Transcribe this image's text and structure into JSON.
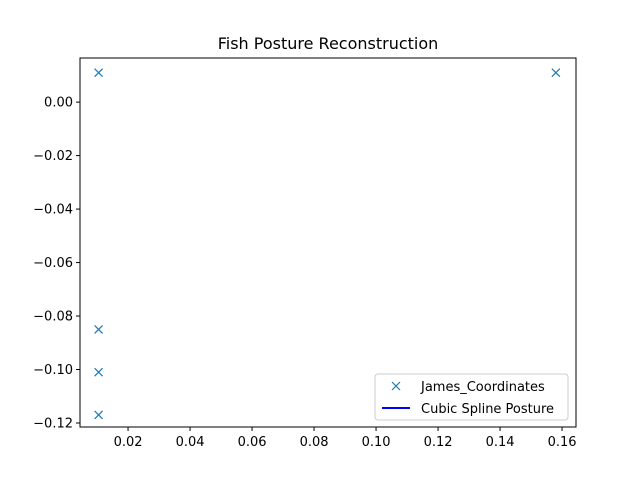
{
  "chart_data": {
    "type": "scatter",
    "title": "Fish Posture Reconstruction",
    "xlabel": "",
    "ylabel": "",
    "xlim": [
      0.0045,
      0.1645
    ],
    "ylim": [
      -0.1215,
      0.0165
    ],
    "x_ticks": [
      0.02,
      0.04,
      0.06,
      0.08,
      0.1,
      0.12,
      0.14,
      0.16
    ],
    "x_tick_labels": [
      "0.02",
      "0.04",
      "0.06",
      "0.08",
      "0.10",
      "0.12",
      "0.14",
      "0.16"
    ],
    "y_ticks": [
      0.0,
      -0.02,
      -0.04,
      -0.06,
      -0.08,
      -0.1,
      -0.12
    ],
    "y_tick_labels": [
      "0.00",
      "−0.02",
      "−0.04",
      "−0.06",
      "−0.08",
      "−0.10",
      "−0.12"
    ],
    "grid": false,
    "legend_position": "lower-right",
    "series": [
      {
        "name": "James_Coordinates",
        "marker": "x",
        "color": "#1f77b4",
        "x": [
          0.0105,
          0.0105,
          0.0105,
          0.0105,
          0.158
        ],
        "y": [
          0.011,
          -0.085,
          -0.101,
          -0.117,
          0.011
        ]
      },
      {
        "name": "Cubic Spline Posture",
        "marker": "line",
        "color": "#0000ff",
        "x": [],
        "y": []
      }
    ]
  }
}
